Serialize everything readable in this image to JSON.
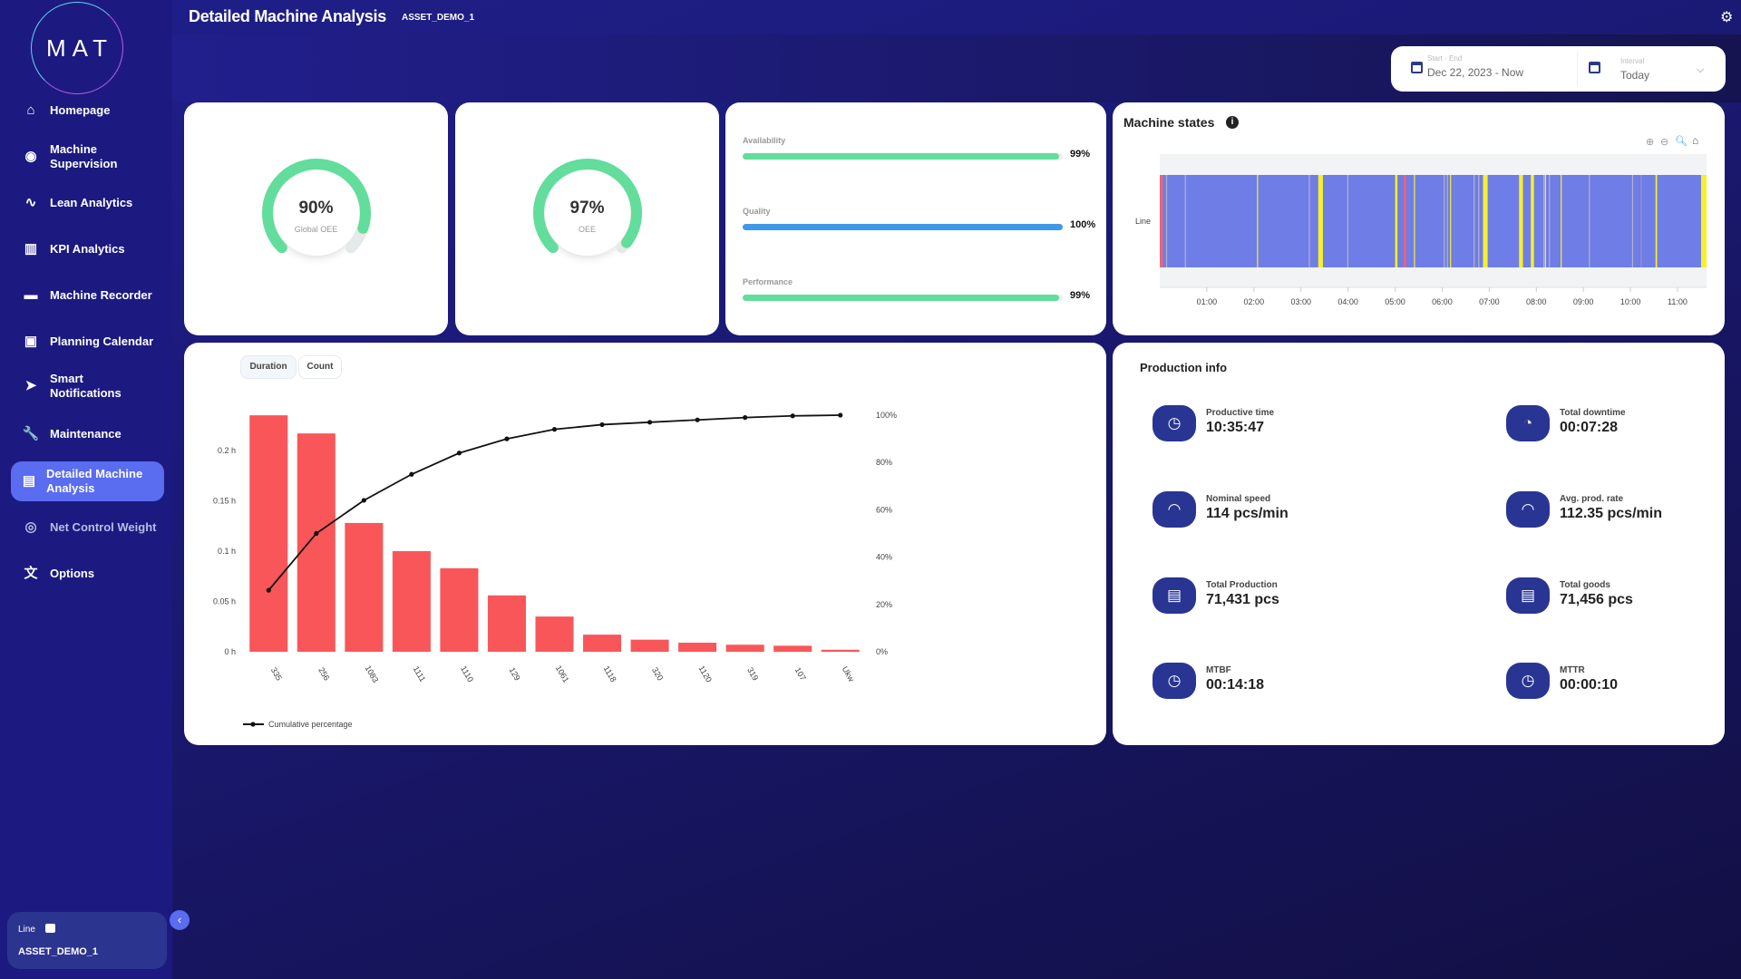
{
  "logo": "MAT",
  "sidebar": {
    "items": [
      {
        "label": "Homepage",
        "icon": "home-icon",
        "glyph": "⌂"
      },
      {
        "label": "Machine Supervision",
        "icon": "eye-icon",
        "glyph": "◉"
      },
      {
        "label": "Lean Analytics",
        "icon": "trend-line-icon",
        "glyph": "∿"
      },
      {
        "label": "KPI Analytics",
        "icon": "bar-chart-icon",
        "glyph": "▥"
      },
      {
        "label": "Machine Recorder",
        "icon": "recorder-icon",
        "glyph": "▬"
      },
      {
        "label": "Planning Calendar",
        "icon": "calendar-icon",
        "glyph": "▣"
      },
      {
        "label": "Smart Notifications",
        "icon": "send-icon",
        "glyph": "➤"
      },
      {
        "label": "Maintenance",
        "icon": "wrench-icon",
        "glyph": "🔧"
      },
      {
        "label": "Detailed Machine Analysis",
        "icon": "document-icon",
        "glyph": "▤",
        "active": true
      },
      {
        "label": "Net Control Weight",
        "icon": "target-icon",
        "glyph": "◎"
      },
      {
        "label": "Options",
        "icon": "translate-icon",
        "glyph": "文"
      }
    ],
    "line_label": "Line",
    "line_value": "ASSET_DEMO_1"
  },
  "header": {
    "title": "Detailed Machine Analysis",
    "asset": "ASSET_DEMO_1"
  },
  "date_filter": {
    "range_label": "Start - End",
    "range_value": "Dec 22, 2023 - Now",
    "interval_label": "Interval",
    "interval_value": "Today"
  },
  "gauges": [
    {
      "value_text": "90%",
      "value": 0.9,
      "label": "Global OEE"
    },
    {
      "value_text": "97%",
      "value": 0.97,
      "label": "OEE"
    }
  ],
  "kpi_bars": [
    {
      "label": "Availability",
      "value_text": "99%",
      "value": 0.99,
      "color": "#62dd9b"
    },
    {
      "label": "Quality",
      "value_text": "100%",
      "value": 1.0,
      "color": "#3f98e8"
    },
    {
      "label": "Performance",
      "value_text": "99%",
      "value": 0.99,
      "color": "#62dd9b"
    }
  ],
  "machine_states": {
    "title": "Machine states",
    "row_label": "Line",
    "ticks": [
      "01:00",
      "02:00",
      "03:00",
      "04:00",
      "05:00",
      "06:00",
      "07:00",
      "08:00",
      "09:00",
      "10:00",
      "11:00"
    ],
    "range": [
      "00:00",
      "11:37"
    ],
    "colors": {
      "running": "#6f7de6",
      "stop": "#f7ef2a",
      "fault": "#e8657a",
      "minor": "#b0b4c8",
      "other": "#a889d8"
    },
    "events": [
      {
        "state": "fault",
        "start": "00:00",
        "end": "00:04"
      },
      {
        "state": "minor",
        "start": "00:08",
        "end": "00:09"
      },
      {
        "state": "minor",
        "start": "00:32",
        "end": "00:33"
      },
      {
        "state": "stop",
        "start": "02:04",
        "end": "02:05"
      },
      {
        "state": "minor",
        "start": "03:10",
        "end": "03:11"
      },
      {
        "state": "stop",
        "start": "03:22",
        "end": "03:28"
      },
      {
        "state": "minor",
        "start": "03:59",
        "end": "04:00"
      },
      {
        "state": "stop",
        "start": "05:00",
        "end": "05:03"
      },
      {
        "state": "fault",
        "start": "05:11",
        "end": "05:14"
      },
      {
        "state": "stop",
        "start": "05:24",
        "end": "05:25"
      },
      {
        "state": "minor",
        "start": "06:02",
        "end": "06:03"
      },
      {
        "state": "minor",
        "start": "06:06",
        "end": "06:07"
      },
      {
        "state": "stop",
        "start": "06:10",
        "end": "06:11"
      },
      {
        "state": "minor",
        "start": "06:40",
        "end": "06:41"
      },
      {
        "state": "minor",
        "start": "06:46",
        "end": "06:47"
      },
      {
        "state": "stop",
        "start": "06:52",
        "end": "06:58"
      },
      {
        "state": "stop",
        "start": "07:38",
        "end": "07:43"
      },
      {
        "state": "stop",
        "start": "07:53",
        "end": "07:57"
      },
      {
        "state": "minor",
        "start": "08:09",
        "end": "08:10"
      },
      {
        "state": "stop",
        "start": "08:11",
        "end": "08:12"
      },
      {
        "state": "minor",
        "start": "08:16",
        "end": "08:17"
      },
      {
        "state": "stop",
        "start": "08:31",
        "end": "08:32"
      },
      {
        "state": "minor",
        "start": "09:07",
        "end": "09:08"
      },
      {
        "state": "minor",
        "start": "10:02",
        "end": "10:03"
      },
      {
        "state": "other",
        "start": "10:13",
        "end": "10:14"
      },
      {
        "state": "stop",
        "start": "10:32",
        "end": "10:34"
      },
      {
        "state": "stop",
        "start": "11:30",
        "end": "11:37"
      }
    ]
  },
  "pareto": {
    "tabs": [
      "Duration",
      "Count"
    ],
    "active_tab": "Duration"
  },
  "chart_data": {
    "type": "bar",
    "categories": [
      "335",
      "256",
      "1083",
      "1111",
      "1110",
      "129",
      "1061",
      "1118",
      "320",
      "1120",
      "319",
      "107",
      "Ukw"
    ],
    "series": [
      {
        "type": "bar",
        "values": [
          0.235,
          0.217,
          0.128,
          0.1,
          0.083,
          0.056,
          0.035,
          0.017,
          0.012,
          0.009,
          0.007,
          0.006,
          0.002
        ],
        "color": "#f9565a"
      },
      {
        "type": "line",
        "name": "Cumulative percentage",
        "values": [
          26,
          50,
          64,
          75,
          84,
          90,
          94,
          96,
          97,
          98,
          99,
          99.7,
          100
        ],
        "color": "#111111"
      }
    ],
    "y_left": {
      "ticks": [
        "0 h",
        "0.05 h",
        "0.1 h",
        "0.15 h",
        "0.2 h"
      ],
      "tick_values": [
        0,
        0.05,
        0.1,
        0.15,
        0.2
      ],
      "range": [
        0,
        0.2
      ]
    },
    "y_right": {
      "ticks": [
        "0%",
        "20%",
        "40%",
        "60%",
        "80%",
        "100%"
      ],
      "range": [
        0,
        100
      ]
    },
    "legend": "bottom-left",
    "grid": false
  },
  "production_info": {
    "title": "Production info",
    "items": [
      {
        "label": "Productive time",
        "value": "10:35:47",
        "icon": "clock-icon",
        "glyph": "◷"
      },
      {
        "label": "Total downtime",
        "value": "00:07:28",
        "icon": "clock-alert-icon",
        "glyph": "◔"
      },
      {
        "label": "Nominal speed",
        "value": "114 pcs/min",
        "icon": "speedometer-icon",
        "glyph": "◠"
      },
      {
        "label": "Avg. prod. rate",
        "value": "112.35 pcs/min",
        "icon": "speedometer-icon",
        "glyph": "◠"
      },
      {
        "label": "Total Production",
        "value": "71,431 pcs",
        "icon": "archive-icon",
        "glyph": "▤"
      },
      {
        "label": "Total goods",
        "value": "71,456 pcs",
        "icon": "archive-icon",
        "glyph": "▤"
      },
      {
        "label": "MTBF",
        "value": "00:14:18",
        "icon": "clock-icon",
        "glyph": "◷"
      },
      {
        "label": "MTTR",
        "value": "00:00:10",
        "icon": "clock-icon",
        "glyph": "◷"
      }
    ]
  }
}
